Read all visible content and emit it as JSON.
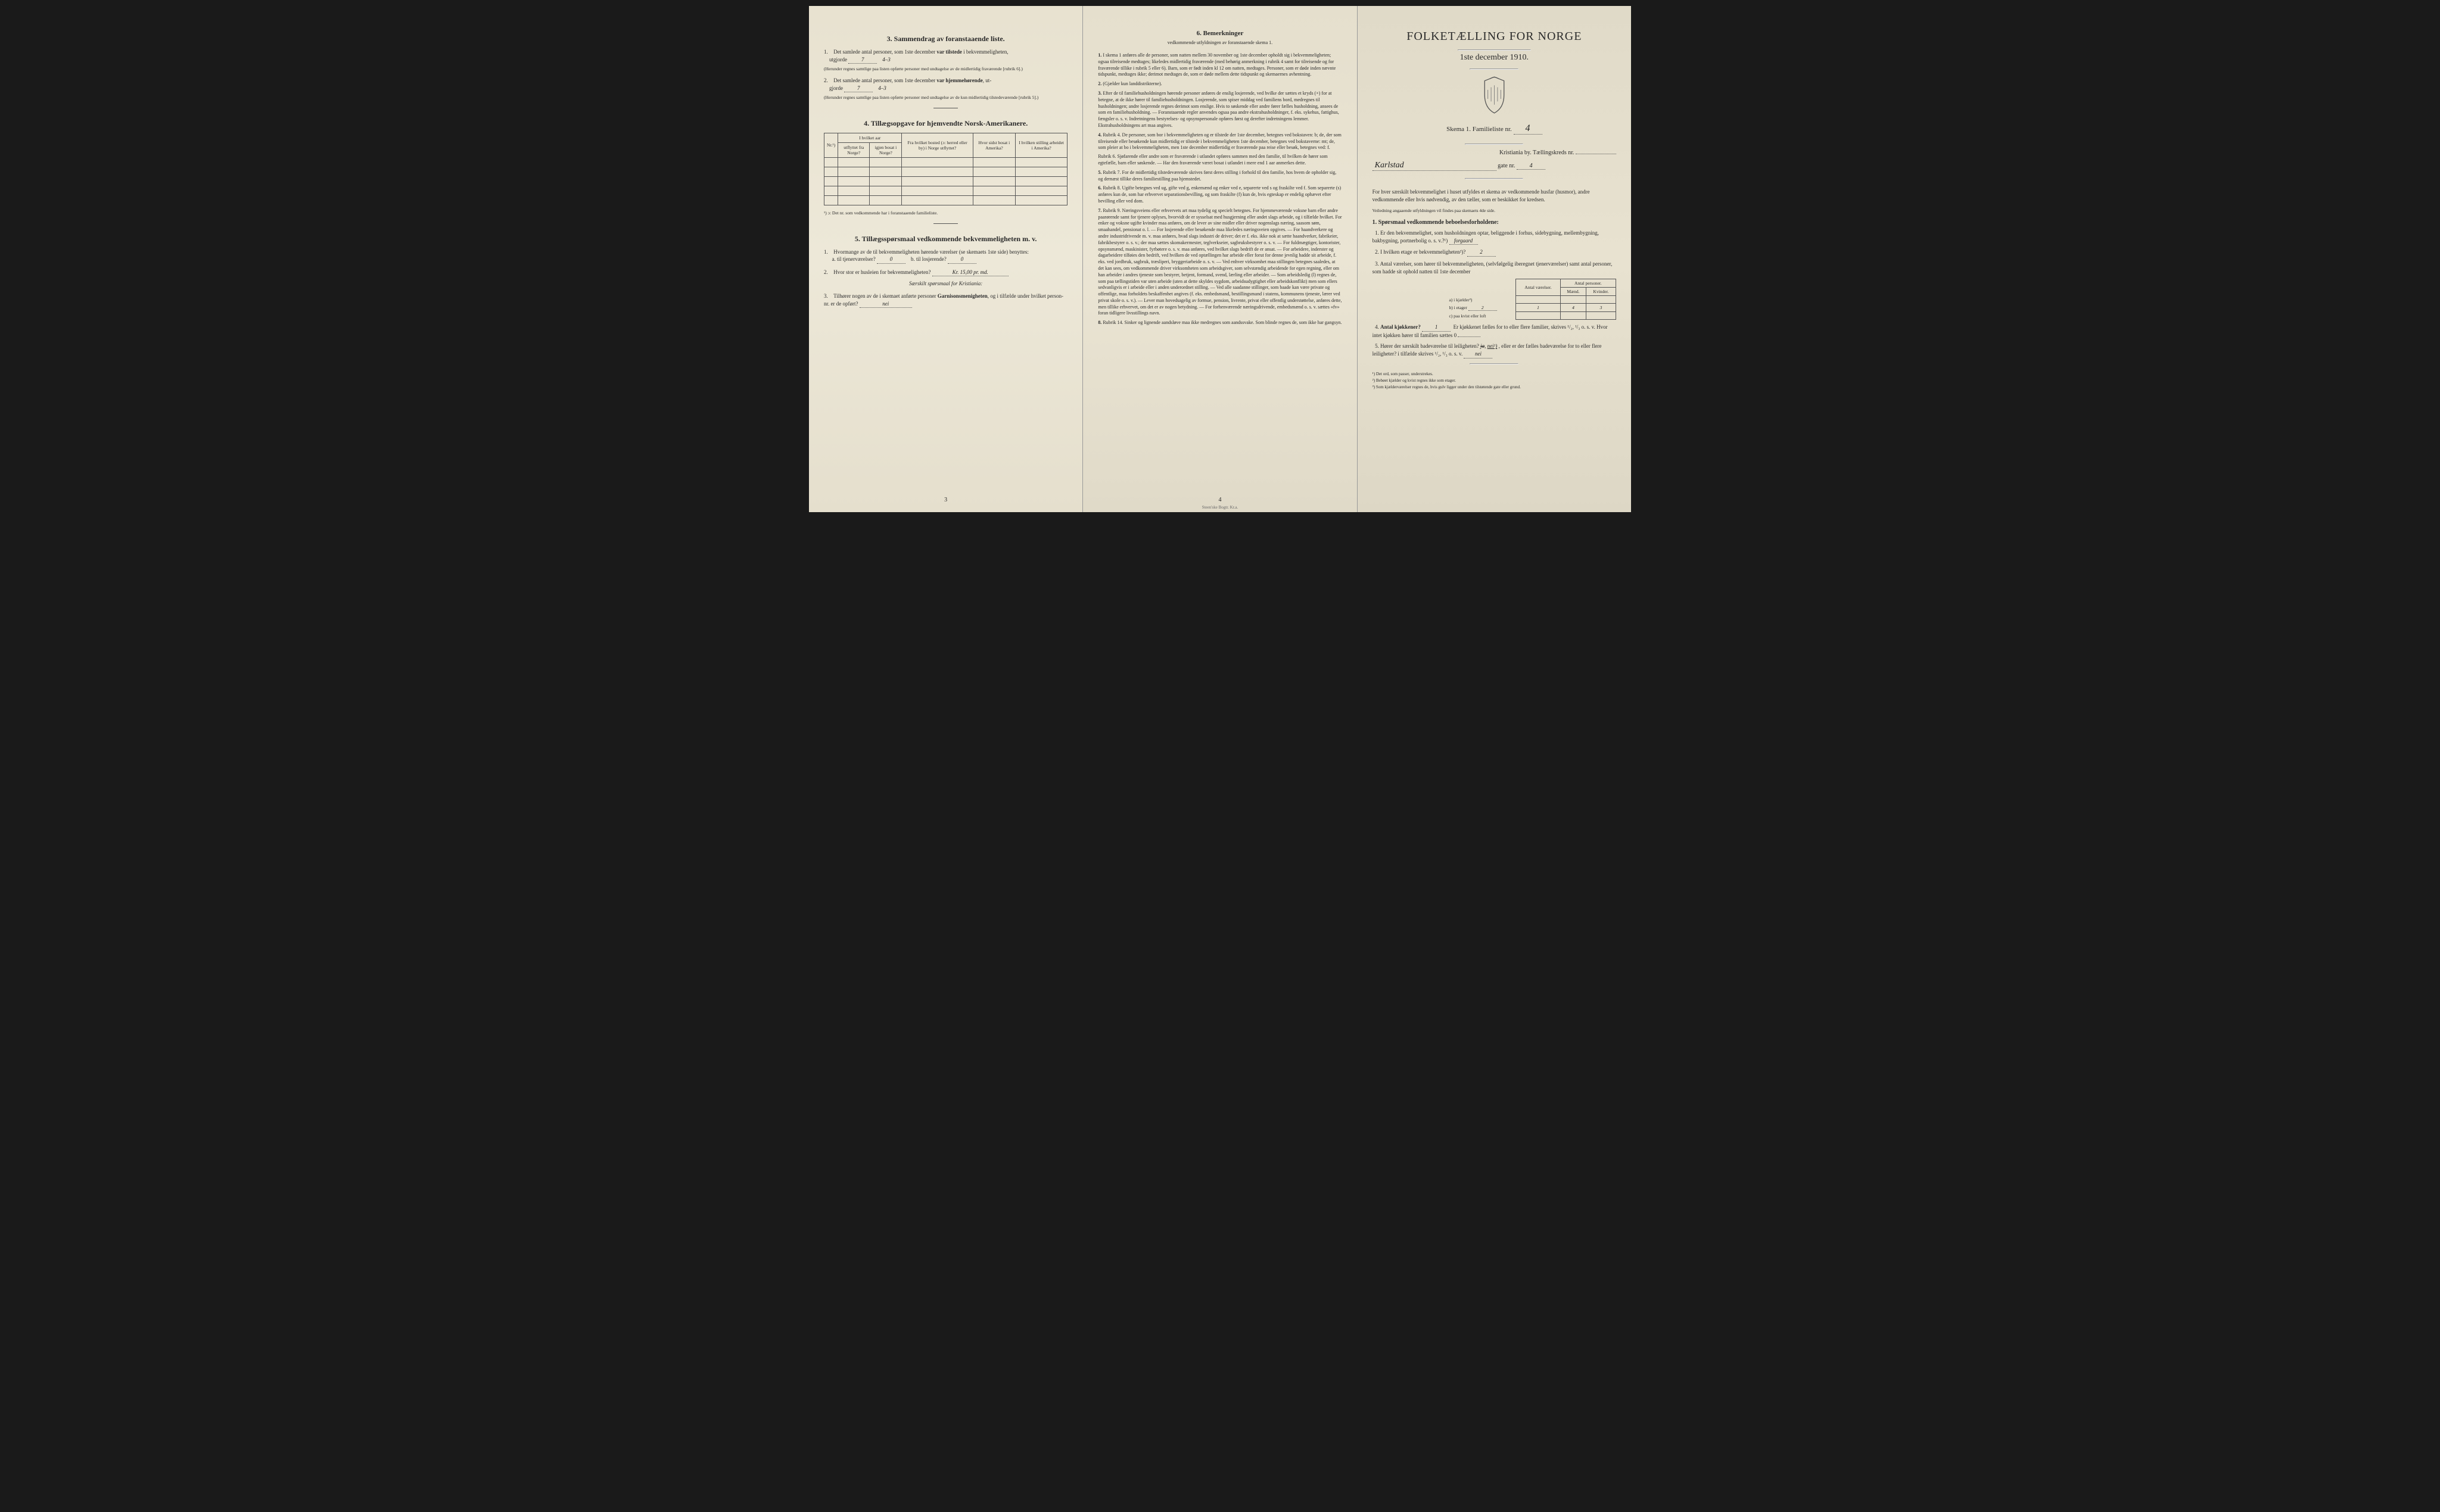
{
  "page1": {
    "section3": {
      "title": "3.  Sammendrag av foranstaaende liste.",
      "q1": {
        "num": "1.",
        "text_a": "Det samlede antal personer, som 1ste december",
        "bold_a": "var tilstede",
        "text_b": "i bekvemmeligheten,",
        "text_c": "utgjorde",
        "value": "7",
        "value2": "4–3",
        "paren": "(Herunder regnes samtlige paa listen opførte personer med undtagelse av de midlertidig fraværende [rubrik 6].)"
      },
      "q2": {
        "num": "2.",
        "text_a": "Det samlede antal personer, som 1ste december",
        "bold_a": "var hjemmehørende",
        "text_b": ", ut-",
        "text_c": "gjorde",
        "value": "7",
        "value2": "4–3",
        "paren": "(Herunder regnes samtlige paa listen opførte personer med undtagelse av de kun midlertidig tilstedeværende [rubrik 5].)"
      }
    },
    "section4": {
      "title": "4.  Tillægsopgave for hjemvendte Norsk-Amerikanere.",
      "headers": {
        "nr": "Nr.¹)",
        "col_group": "I hvilket aar",
        "col1": "utflyttet fra Norge?",
        "col2": "igjen bosat i Norge?",
        "col3": "Fra hvilket bosted (ɔ: herred eller by) i Norge utflyttet?",
        "col4": "Hvor sidst bosat i Amerika?",
        "col5": "I hvilken stilling arbeidet i Amerika?"
      },
      "footnote": "¹) ɔ: Det nr. som vedkommende har i foranstaaende familieliste."
    },
    "section5": {
      "title": "5.  Tillægsspørsmaal vedkommende bekvemmeligheten m. v.",
      "q1": {
        "num": "1.",
        "text": "Hvormange av de til bekvemmeligheten hørende værelser (se skemaets 1ste side) benyttes:",
        "a_label": "a.  til tjenerværelser?",
        "a_value": "0",
        "b_label": "b.  til losjerende?",
        "b_value": "0"
      },
      "q2": {
        "num": "2.",
        "text": "Hvor stor er husleien for bekvemmeligheten?",
        "value": "Kr. 15,00 pr. md.",
        "special": "Særskilt spørsmaal for Kristiania:"
      },
      "q3": {
        "num": "3.",
        "text_a": "Tilhører nogen av de i skemaet anførte personer",
        "bold": "Garnisonsmenigheten",
        "text_b": ", og i tilfælde under hvilket person-nr. er de opført?",
        "value": "nei"
      }
    },
    "page_num": "3"
  },
  "page2": {
    "title": "6.  Bemerkninger",
    "subtitle": "vedkommende utfyldningen av foranstaaende skema 1.",
    "items": [
      {
        "num": "1.",
        "text": "I skema 1 anføres alle de personer, som natten mellem 30 november og 1ste december opholdt sig i bekvemmeligheten; ogsaa tilreisende medtages; likeledes midlertidig fraværende (med behørig anmerkning i rubrik 4 samt for tilreisende og for fraværende tillike i rubrik 5 eller 6). Barn, som er født inden kl 12 om natten, medtages. Personer, som er døde inden nævnte tidspunkt, medtages ikke; derimot medtages de, som er døde mellem dette tidspunkt og skemaernes avhentning."
      },
      {
        "num": "2.",
        "text": "(Gjælder kun landdistrikterne)."
      },
      {
        "num": "3.",
        "text": "Efter de til familiehusholdningen hørende personer anføres de enslig losjerende, ved hvilke der sættes et kryds (×) for at betegne, at de ikke hører til familiehusholdningen. Losjerende, som spiser middag ved familiens bord, medregnes til husholdningen; andre losjerende regnes derimot som enslige. Hvis to søskende eller andre fører fælles husholdning, ansees de som en familiehusholdning. — Foranstaaende regler anvendes ogsaa paa andre ekstrahusholdninger, f. eks. sykehus, fattighus, fængsler o. s. v. Indretningens bestyrelses- og opsynspersonale opføres først og derefter indretningens lemmer. Ekstrahusholdningens art maa angives."
      },
      {
        "num": "4.",
        "text": "Rubrik 4. De personer, som bor i bekvemmeligheten og er tilstede der 1ste december, betegnes ved bokstaven: b; de, der som tilreisende eller besøkende kun midlertidig er tilstede i bekvemmeligheten 1ste december, betegnes ved bokstaverne: mt; de, som pleier at bo i bekvemmeligheten, men 1ste december midlertidig er fraværende paa reise eller besøk, betegnes ved: f.",
        "sub1": "Rubrik 6. Sjøfarende eller andre som er fraværende i utlandet opføres sammen med den familie, til hvilken de hører som egtefælle, barn eller søskende. — Har den fraværende været bosat i utlandet i mere end 1 aar anmerkes dette."
      },
      {
        "num": "5.",
        "text": "Rubrik 7. For de midlertidig tilstedeværende skrives først deres stilling i forhold til den familie, hos hvem de opholder sig, og dernæst tillike deres familiestilling paa hjemstedet."
      },
      {
        "num": "6.",
        "text": "Rubrik 8. Ugifte betegnes ved ug, gifte ved g, enkemænd og enker ved e, separerte ved s og fraskilte ved f. Som separerte (s) anføres kun de, som har erhvervet separationsbevilling, og som fraskilte (f) kun de, hvis egteskap er endelig ophævet efter bevilling eller ved dom."
      },
      {
        "num": "7.",
        "text": "Rubrik 9. Næringsveiens eller erhvervets art maa tydelig og specielt betegnes. For hjemmeværende voksne barn eller andre paarørende samt for tjenere oplyses, hvorvidt de er sysselsat med husgjerning eller andet slags arbeide, og i tilfælde hvilket. For enker og voksne ugifte kvinder maa anføres, om de lever av sine midler eller driver nogenslags næring, saasom søm, smaahandel, pensionat o. l. — For losjerende eller besøkende maa likeledes næringsveien opgives. — For haandverkere og andre industridrivende m. v. maa anføres, hvad slags industri de driver; det er f. eks. ikke nok at sætte haandverker, fabrikeier, fabrikbestyrer o. s. v.; der maa sættes skomakermester, teglverkseier, sagbruksbestyrer o. s. v. — For fuldmægtiger, kontorister, opsynsmænd, maskinister, fyrbøtere o. s. v. maa anføres, ved hvilket slags bedrift de er ansat. — For arbeidere, inderster og dagarbeidere tilføies den bedrift, ved hvilken de ved optællingen har arbeide eller forut for denne jevnlig hadde sit arbeide, f. eks. ved jordbruk, sagbruk, træsliperi, bryggeriarbeide o. s. v. — Ved enhver virksomhet maa stillingen betegnes saaledes, at det kan sees, om vedkommende driver virksomheten som arbeidsgiver, som selvstændig arbeidende for egen regning, eller om han arbeider i andres tjeneste som bestyrer, betjent, formand, svend, lærling eller arbeider. — Som arbeidsledig (l) regnes de, som paa tællingstiden var uten arbeide (uten at dette skyldes sygdom, arbeidsudygtighet eller arbeidskonflikt) men som ellers sedvanligvis er i arbeide eller i anden underordnet stilling. — Ved alle saadanne stillinger, som baade kan være private og offentlige, maa forholdets beskaffenhet angives (f. eks. embedsmand, bestillingsmand i statens, kommunens tjeneste, lærer ved privat skole o. s. v.). — Lever man hovedsagelig av formue, pension, livrente, privat eller offentlig understøttelse, anføres dette, men tillike erhvervet, om det er av nogen betydning. — For forhenværende næringsdrivende, embedsmænd o. s. v. sættes «fv» foran tidligere livsstillings navn."
      },
      {
        "num": "8.",
        "text": "Rubrik 14. Sinker og lignende aandsløve maa ikke medregnes som aandssvake. Som blinde regnes de, som ikke har gangsyn."
      }
    ],
    "page_num": "4",
    "imprint": "Steen'ske Bogtr.  Kr.a."
  },
  "page3": {
    "title": "FOLKETÆLLING FOR NORGE",
    "date": "1ste december 1910.",
    "skema": "Skema 1.   Familieliste nr.",
    "skema_value": "4",
    "city_line": "Kristiania by.  Tællingskreds nr.",
    "city_value": "",
    "street": "Karlstad",
    "street_suffix": "gate nr.",
    "street_num": "4",
    "intro": "For hver særskilt bekvemmelighet i huset utfyldes et skema av vedkommende husfar (husmor), andre vedkommende eller hvis nødvendig, av den tæller, som er beskikket for kredsen.",
    "intro_note": "Veiledning angaaende utfyldningen vil findes paa skemaets 4de side.",
    "section1_title": "1. Spørsmaal vedkommende beboelsesforholdene:",
    "q1": {
      "num": "1.",
      "text": "Er den bekvemmelighet, som husholdningen optar, beliggende i forhus, sidebygning, mellembygning, bakbygning, portnerbolig o. s. v.?¹)",
      "value": "forgaard"
    },
    "q2": {
      "num": "2.",
      "text": "I hvilken etage er bekvemmeligheten²)?",
      "value": "2"
    },
    "q3": {
      "num": "3.",
      "text": "Antal værelser, som hører til bekvemmeligheten, (selvfølgelig iberegnet tjenerværelser) samt antal personer, som hadde sit ophold natten til 1ste december"
    },
    "rooms_table": {
      "h1": "Antal værelser.",
      "h2": "Antal personer.",
      "h2a": "Mænd.",
      "h2b": "Kvinder.",
      "row_a": {
        "label": "a) i kjælder³)",
        "v1": "",
        "m": "",
        "k": ""
      },
      "row_b": {
        "label": "b) i etager",
        "etage": "2",
        "v1": "1",
        "m": "4",
        "k": "3"
      },
      "row_c": {
        "label": "c) paa kvist eller loft",
        "v1": "",
        "m": "",
        "k": ""
      }
    },
    "q4": {
      "num": "4.",
      "text_a": "Antal kjøkkener?",
      "value": "1",
      "text_b": "Er kjøkkenet fælles for to eller flere familier, skrives ¹/₂, ¹/₃ o. s. v.  Hvor intet kjøkken hører til familien sættes 0"
    },
    "q5": {
      "num": "5.",
      "text_a": "Hører der særskilt badeværelse til leiligheten?",
      "value_strike": "ja",
      "value": "nei¹)",
      "text_b": ", eller er der fælles badeværelse for to eller flere leiligheter?  i tilfælde skrives ¹/₂, ¹/₃ o. s. v.",
      "fill": "nei"
    },
    "footnotes": [
      "¹)  Det ord, som passer, understrekes.",
      "²)  Bebøet kjælder og kvist regnes ikke som etager.",
      "³)  Som kjælderværelser regnes de, hvis gulv ligger under den tilstøtende gate eller grund."
    ]
  }
}
